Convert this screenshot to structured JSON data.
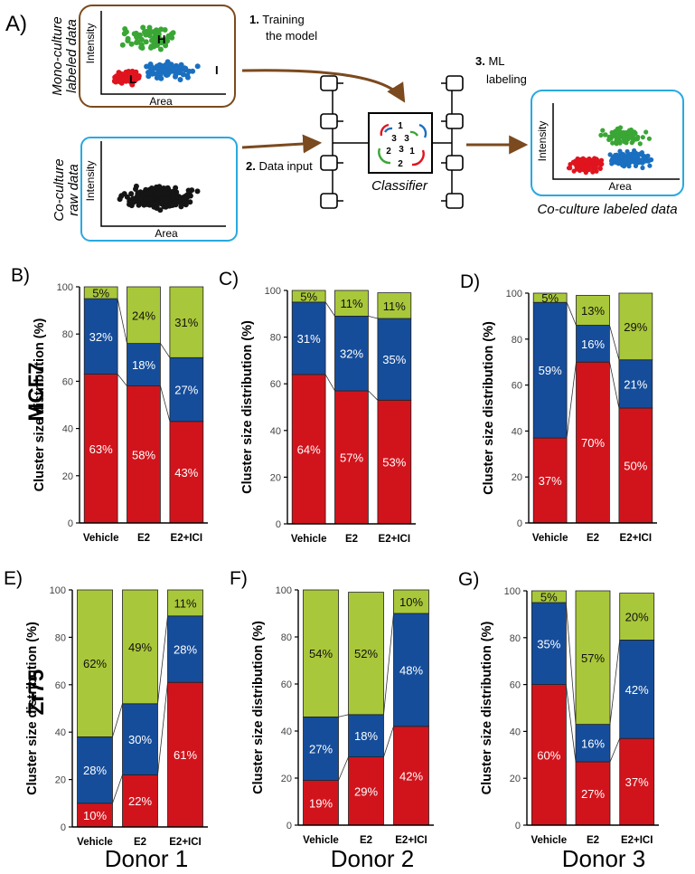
{
  "workflow": {
    "panel_label": "A)",
    "mono_culture": {
      "side_label_1": "Mono-culture",
      "side_label_2": "labeled data",
      "xlabel": "Area",
      "ylabel": "Intensity",
      "cluster_h": "H",
      "cluster_l": "L",
      "cluster_i": "I"
    },
    "co_raw": {
      "side_label_1": "Co-culture",
      "side_label_2": "raw data",
      "xlabel": "Area",
      "ylabel": "Intensity"
    },
    "co_labeled": {
      "caption": "Co-culture labeled data",
      "xlabel": "Area",
      "ylabel": "Intensity"
    },
    "step1_num": "1.",
    "step1_line1": "Training",
    "step1_line2": "the model",
    "step2_num": "2.",
    "step2_text": "Data input",
    "step3_num": "3.",
    "step3_line1": "ML",
    "step3_line2": "labeling",
    "classifier_label": "Classifier",
    "classifier_digits": [
      "1",
      "3",
      "3",
      "2",
      "3",
      "1",
      "2"
    ],
    "colors": {
      "green": "#3aa635",
      "blue": "#1a6fc0",
      "red": "#e0141e",
      "black": "#151515",
      "brown": "#7b4a1e",
      "cyan": "#29a9e0"
    }
  },
  "rows": {
    "row1_label": "MCF7",
    "row2_label": "Zr75"
  },
  "columns": {
    "col1": "Donor 1",
    "col2": "Donor 2",
    "col3": "Donor 3"
  },
  "chart_data": [
    {
      "panel": "B)",
      "type": "bar",
      "stacked": true,
      "categories": [
        "Vehicle",
        "E2",
        "E2+ICI"
      ],
      "series": [
        {
          "name": "L",
          "color": "#d1141c",
          "values": [
            63,
            58,
            43
          ]
        },
        {
          "name": "I",
          "color": "#154d9a",
          "values": [
            32,
            18,
            27
          ]
        },
        {
          "name": "H",
          "color": "#a9c73a",
          "values": [
            5,
            24,
            31
          ]
        }
      ],
      "ylabel": "Cluster size  distribution (%)",
      "ylim": [
        0,
        100
      ],
      "yticks": [
        0,
        20,
        40,
        60,
        80,
        100
      ]
    },
    {
      "panel": "C)",
      "type": "bar",
      "stacked": true,
      "categories": [
        "Vehicle",
        "E2",
        "E2+ICI"
      ],
      "series": [
        {
          "name": "L",
          "color": "#d1141c",
          "values": [
            64,
            57,
            53
          ]
        },
        {
          "name": "I",
          "color": "#154d9a",
          "values": [
            31,
            32,
            35
          ]
        },
        {
          "name": "H",
          "color": "#a9c73a",
          "values": [
            5,
            11,
            11
          ]
        }
      ],
      "ylabel": "Cluster size  distribution (%)",
      "ylim": [
        0,
        100
      ],
      "yticks": [
        0,
        20,
        40,
        60,
        80,
        100
      ]
    },
    {
      "panel": "D)",
      "type": "bar",
      "stacked": true,
      "categories": [
        "Vehicle",
        "E2",
        "E2+ICI"
      ],
      "series": [
        {
          "name": "L",
          "color": "#d1141c",
          "values": [
            37,
            70,
            50
          ]
        },
        {
          "name": "I",
          "color": "#154d9a",
          "values": [
            59,
            16,
            21
          ]
        },
        {
          "name": "H",
          "color": "#a9c73a",
          "values": [
            5,
            13,
            29
          ]
        }
      ],
      "ylabel": "Cluster size  distribution (%)",
      "ylim": [
        0,
        100
      ],
      "yticks": [
        0,
        20,
        40,
        60,
        80,
        100
      ]
    },
    {
      "panel": "E)",
      "type": "bar",
      "stacked": true,
      "categories": [
        "Vehicle",
        "E2",
        "E2+ICI"
      ],
      "series": [
        {
          "name": "L",
          "color": "#d1141c",
          "values": [
            10,
            22,
            61
          ]
        },
        {
          "name": "I",
          "color": "#154d9a",
          "values": [
            28,
            30,
            28
          ]
        },
        {
          "name": "H",
          "color": "#a9c73a",
          "values": [
            62,
            49,
            11
          ]
        }
      ],
      "ylabel": "Cluster size  distribution (%)",
      "ylim": [
        0,
        100
      ],
      "yticks": [
        0,
        20,
        40,
        60,
        80,
        100
      ]
    },
    {
      "panel": "F)",
      "type": "bar",
      "stacked": true,
      "categories": [
        "Vehicle",
        "E2",
        "E2+ICI"
      ],
      "series": [
        {
          "name": "L",
          "color": "#d1141c",
          "values": [
            19,
            29,
            42
          ]
        },
        {
          "name": "I",
          "color": "#154d9a",
          "values": [
            27,
            18,
            48
          ]
        },
        {
          "name": "H",
          "color": "#a9c73a",
          "values": [
            54,
            52,
            10
          ]
        }
      ],
      "ylabel": "Cluster size  distribution (%)",
      "ylim": [
        0,
        100
      ],
      "yticks": [
        0,
        20,
        40,
        60,
        80,
        100
      ]
    },
    {
      "panel": "G)",
      "type": "bar",
      "stacked": true,
      "categories": [
        "Vehicle",
        "E2",
        "E2+ICI"
      ],
      "series": [
        {
          "name": "L",
          "color": "#d1141c",
          "values": [
            60,
            27,
            37
          ]
        },
        {
          "name": "I",
          "color": "#154d9a",
          "values": [
            35,
            16,
            42
          ]
        },
        {
          "name": "H",
          "color": "#a9c73a",
          "values": [
            5,
            57,
            20
          ]
        }
      ],
      "ylabel": "Cluster size  distribution (%)",
      "ylim": [
        0,
        100
      ],
      "yticks": [
        0,
        20,
        40,
        60,
        80,
        100
      ]
    }
  ]
}
